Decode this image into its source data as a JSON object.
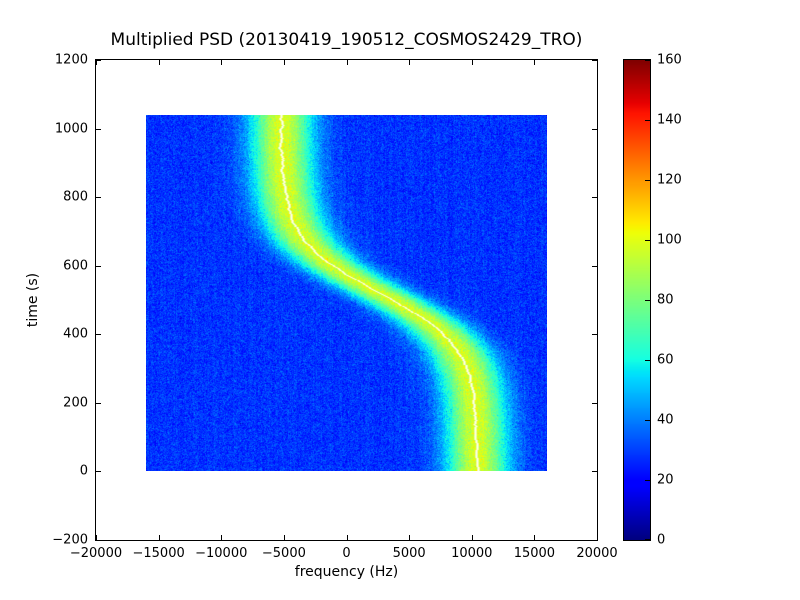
{
  "chart_data": {
    "type": "heatmap",
    "title": "Multiplied PSD (20130419_190512_COSMOS2429_TRO)",
    "xlabel": "frequency (Hz)",
    "ylabel": "time (s)",
    "xlim": [
      -20000,
      20000
    ],
    "ylim": [
      -200,
      1200
    ],
    "xticks": [
      -20000,
      -15000,
      -10000,
      -5000,
      0,
      5000,
      10000,
      15000,
      20000
    ],
    "yticks": [
      -200,
      0,
      200,
      400,
      600,
      800,
      1000,
      1200
    ],
    "data_extent": {
      "x": [
        -16000,
        16000
      ],
      "y": [
        0,
        1040
      ]
    },
    "colormap": "jet",
    "colorbar": {
      "min": 0,
      "max": 160,
      "ticks": [
        0,
        20,
        40,
        60,
        80,
        100,
        120,
        140,
        160
      ]
    },
    "background_value": 28,
    "noise_sigma": 4.5,
    "doppler_track": {
      "model": "f(t) = f0_hz - amp_hz * tanh((t - t_mid_s)/tau_s)",
      "f0_hz": 2650,
      "amp_hz": 7850,
      "t_mid_s": 520,
      "tau_s": 155,
      "peak_value": 98,
      "band_sigma_hz": 1750,
      "centerline_color": "#ffffff"
    }
  }
}
